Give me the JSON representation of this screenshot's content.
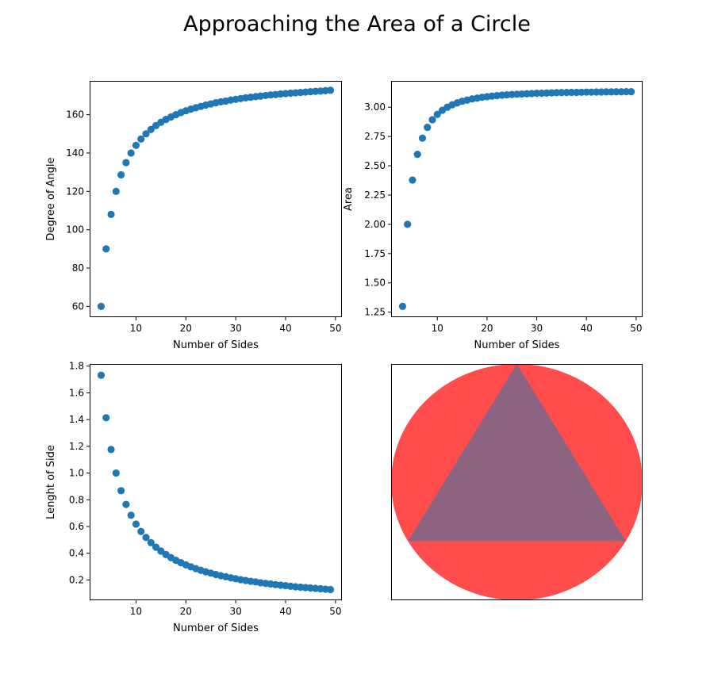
{
  "figure_title": "Approaching the Area of a Circle",
  "chart_data": [
    {
      "type": "scatter",
      "xlabel": "Number of Sides",
      "ylabel": "Degree of Angle",
      "xlim": [
        0.7,
        51.3
      ],
      "ylim": [
        54.38,
        177.62
      ],
      "xticks": [
        10,
        20,
        30,
        40,
        50
      ],
      "yticks": [
        60,
        80,
        100,
        120,
        140,
        160
      ],
      "color": "#1f77b4",
      "metric": "angle",
      "x": [
        3,
        4,
        5,
        6,
        7,
        8,
        9,
        10,
        11,
        12,
        13,
        14,
        15,
        16,
        17,
        18,
        19,
        20,
        21,
        22,
        23,
        24,
        25,
        26,
        27,
        28,
        29,
        30,
        31,
        32,
        33,
        34,
        35,
        36,
        37,
        38,
        39,
        40,
        41,
        42,
        43,
        44,
        45,
        46,
        47,
        48,
        49
      ],
      "y": [
        60,
        90,
        108,
        120,
        128.6,
        135,
        140,
        144,
        147.3,
        150,
        152.3,
        154.3,
        156,
        157.5,
        158.8,
        160,
        161.1,
        162,
        162.9,
        163.6,
        164.3,
        165,
        165.6,
        166.2,
        166.7,
        167.1,
        167.6,
        168,
        168.4,
        168.8,
        169.1,
        169.4,
        169.7,
        170,
        170.3,
        170.5,
        170.8,
        171,
        171.2,
        171.4,
        171.6,
        171.8,
        172,
        172.2,
        172.3,
        172.5,
        172.7
      ]
    },
    {
      "type": "scatter",
      "xlabel": "Number of Sides",
      "ylabel": "Area",
      "xlim": [
        0.7,
        51.3
      ],
      "ylim": [
        1.207,
        3.225
      ],
      "xticks": [
        10,
        20,
        30,
        40,
        50
      ],
      "yticks": [
        "1.25",
        "1.50",
        "1.75",
        "2.00",
        "2.25",
        "2.50",
        "2.75",
        "3.00"
      ],
      "color": "#1f77b4",
      "metric": "area",
      "x": [
        3,
        4,
        5,
        6,
        7,
        8,
        9,
        10,
        11,
        12,
        13,
        14,
        15,
        16,
        17,
        18,
        19,
        20,
        21,
        22,
        23,
        24,
        25,
        26,
        27,
        28,
        29,
        30,
        31,
        32,
        33,
        34,
        35,
        36,
        37,
        38,
        39,
        40,
        41,
        42,
        43,
        44,
        45,
        46,
        47,
        48,
        49
      ],
      "y": [
        1.299,
        2.0,
        2.378,
        2.598,
        2.736,
        2.828,
        2.893,
        2.939,
        2.974,
        3.0,
        3.021,
        3.037,
        3.051,
        3.061,
        3.071,
        3.078,
        3.085,
        3.09,
        3.095,
        3.099,
        3.103,
        3.106,
        3.109,
        3.111,
        3.113,
        3.115,
        3.117,
        3.119,
        3.12,
        3.121,
        3.123,
        3.124,
        3.125,
        3.126,
        3.127,
        3.127,
        3.128,
        3.129,
        3.129,
        3.13,
        3.13,
        3.131,
        3.131,
        3.132,
        3.132,
        3.133,
        3.133
      ]
    },
    {
      "type": "scatter",
      "xlabel": "Number of Sides",
      "ylabel": "Lenght of Side",
      "xlim": [
        0.7,
        51.3
      ],
      "ylim": [
        0.0481,
        1.8162
      ],
      "xticks": [
        10,
        20,
        30,
        40,
        50
      ],
      "yticks": [
        "0.2",
        "0.4",
        "0.6",
        "0.8",
        "1.0",
        "1.2",
        "1.4",
        "1.6",
        "1.8"
      ],
      "color": "#1f77b4",
      "metric": "side",
      "x": [
        3,
        4,
        5,
        6,
        7,
        8,
        9,
        10,
        11,
        12,
        13,
        14,
        15,
        16,
        17,
        18,
        19,
        20,
        21,
        22,
        23,
        24,
        25,
        26,
        27,
        28,
        29,
        30,
        31,
        32,
        33,
        34,
        35,
        36,
        37,
        38,
        39,
        40,
        41,
        42,
        43,
        44,
        45,
        46,
        47,
        48,
        49
      ],
      "y": [
        1.732,
        1.414,
        1.176,
        1.0,
        0.868,
        0.765,
        0.684,
        0.618,
        0.563,
        0.518,
        0.479,
        0.445,
        0.416,
        0.39,
        0.367,
        0.347,
        0.329,
        0.313,
        0.298,
        0.285,
        0.272,
        0.261,
        0.251,
        0.241,
        0.232,
        0.224,
        0.216,
        0.209,
        0.202,
        0.196,
        0.19,
        0.185,
        0.179,
        0.174,
        0.17,
        0.165,
        0.161,
        0.157,
        0.153,
        0.149,
        0.146,
        0.143,
        0.14,
        0.137,
        0.134,
        0.131,
        0.128
      ]
    },
    {
      "type": "diagram",
      "shape": "circle with inscribed equilateral triangle",
      "circle_color": "#ff4c4c",
      "triangle_color": "#8c6380"
    }
  ]
}
